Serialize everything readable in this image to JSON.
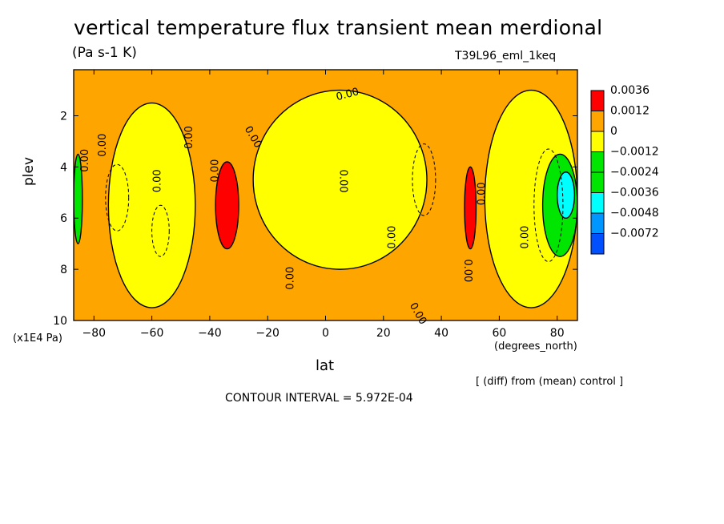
{
  "title": "vertical temperature flux transient mean merdional",
  "units": "(Pa s-1 K)",
  "run_id": "T39L96_eml_1keq",
  "y_unit": "(x1E4 Pa)",
  "x_unit": "(degrees_north)",
  "note": "[ (diff) from (mean) control ]",
  "contour_interval": "CONTOUR INTERVAL = 5.972E-04",
  "colors": {
    "red": "#ff0000",
    "orange": "#ffa500",
    "yellow": "#ffff00",
    "green": "#00e600",
    "cyan": "#00ffff",
    "blue_mid": "#0096ff",
    "blue": "#0050ff"
  },
  "chart_data": {
    "type": "heatmap",
    "xlabel": "lat",
    "ylabel": "plev",
    "xlim": [
      -87,
      87
    ],
    "ylim": [
      10,
      0.2
    ],
    "xticks": [
      "-80",
      "-60",
      "-40",
      "-20",
      "0",
      "20",
      "40",
      "60",
      "80"
    ],
    "yticks": [
      "2",
      "4",
      "6",
      "8",
      "10"
    ],
    "legend": {
      "placement": "right",
      "levels": [
        "0.0036",
        "0.0012",
        "0",
        "-0.0012",
        "-0.0024",
        "-0.0036",
        "-0.0048",
        "-0.0072"
      ]
    },
    "contour_labels": [
      "0.00",
      "0.00",
      "0.00",
      "0.00",
      "0.00",
      "0.00",
      "0.00",
      "0.00",
      "0.00",
      "0.00",
      "0.00",
      "0.00",
      "0.00",
      "0.00"
    ],
    "regions": [
      {
        "level": "0.0012",
        "lat": [
          -87,
          87
        ],
        "plev": [
          0.2,
          10
        ]
      },
      {
        "level": "0",
        "lat": [
          -75,
          -45
        ],
        "plev": [
          1.5,
          9.5
        ]
      },
      {
        "level": "0",
        "lat": [
          -25,
          35
        ],
        "plev": [
          1,
          8
        ]
      },
      {
        "level": "0",
        "lat": [
          55,
          87
        ],
        "plev": [
          1,
          9.5
        ]
      },
      {
        "level": "0.0036",
        "lat": [
          -38,
          -30
        ],
        "plev": [
          3.8,
          7.2
        ]
      },
      {
        "level": "0.0036",
        "lat": [
          48,
          52
        ],
        "plev": [
          4,
          7.2
        ]
      },
      {
        "level": "-0.0012",
        "lat": [
          75,
          87
        ],
        "plev": [
          3.5,
          7.5
        ]
      },
      {
        "level": "-0.0024",
        "lat": [
          -87,
          -84
        ],
        "plev": [
          3.5,
          7
        ]
      },
      {
        "level": "-0.0036",
        "lat": [
          80,
          86
        ],
        "plev": [
          4.2,
          6
        ]
      }
    ]
  }
}
